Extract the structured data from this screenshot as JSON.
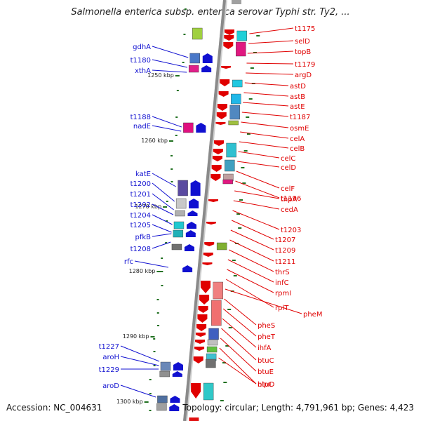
{
  "title": "Salmonella enterica subsp. enterica serovar Typhi str. Ty2, ...",
  "footer": {
    "accession": "Accession: NC_004631",
    "summary": "Topology: circular; Length: 4,791,961 bp; Genes: 4,423"
  },
  "colors": {
    "left_strand": "#1010d0",
    "right_strand": "#e00000",
    "marker": "#207020"
  },
  "tick_labels": [
    "1250 kbp",
    "1260 kbp",
    "1270 kbp",
    "1280 kbp",
    "1290 kbp",
    "1300 kbp"
  ],
  "left_genes": [
    "gdhA",
    "t1180",
    "xthA",
    "t1188",
    "nadE",
    "katE",
    "t1200",
    "t1201",
    "t1202",
    "t1204",
    "t1205",
    "pfkB",
    "t1208",
    "rfc",
    "t1227",
    "aroH",
    "t1229",
    "aroD"
  ],
  "right_genes": [
    "t1175",
    "selD",
    "topB",
    "t1179",
    "argD",
    "astD",
    "astB",
    "astE",
    "t1187",
    "osmE",
    "celA",
    "celB",
    "celC",
    "celD",
    "celF",
    "t1196",
    "tnpA",
    "cedA",
    "t1203",
    "t1207",
    "t1209",
    "t1211",
    "thrS",
    "infC",
    "rpmI",
    "rplT",
    "pheM",
    "pheS",
    "pheT",
    "ihfA",
    "btuC",
    "btuE",
    "btuD",
    "nlpC"
  ]
}
